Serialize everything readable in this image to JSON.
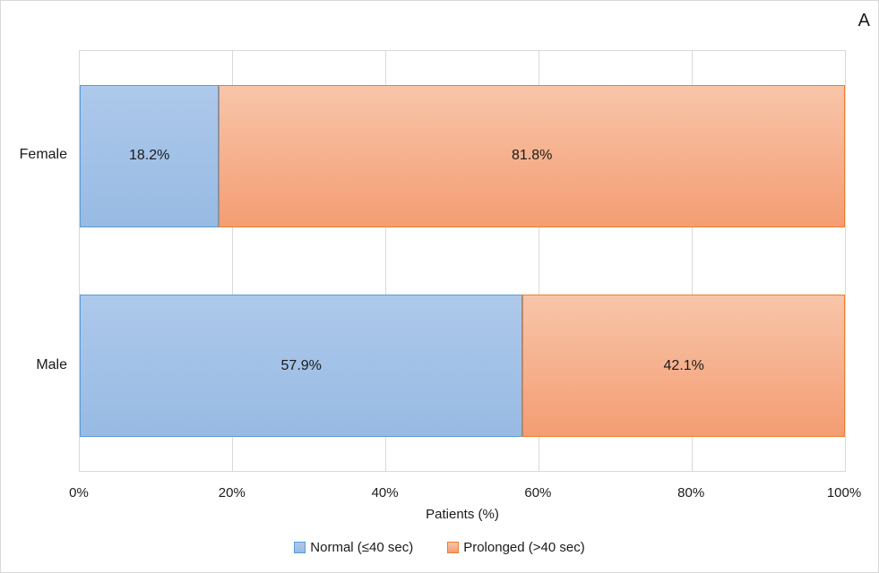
{
  "panel_label": "A",
  "colors": {
    "background": "#FFFFFF",
    "grid_color": "#D9D9D9",
    "plot_border_color": "#D9D9D9",
    "text_color": "#1A1A1A"
  },
  "chart_data": {
    "type": "bar",
    "orientation": "horizontal",
    "stacked": true,
    "categories": [
      "Female",
      "Male"
    ],
    "series": [
      {
        "name": "Normal (≤40 sec)",
        "values": [
          18.2,
          57.9
        ],
        "labels": [
          "18.2%",
          "57.9%"
        ],
        "fill_top": "#ADC9EB",
        "fill_bottom": "#98BAE3",
        "border": "#5B9BD5"
      },
      {
        "name": "Prolonged (>40 sec)",
        "values": [
          81.8,
          42.1
        ],
        "labels": [
          "81.8%",
          "42.1%"
        ],
        "fill_top": "#F8C5A9",
        "fill_bottom": "#F49D73",
        "border": "#ED7D31"
      }
    ],
    "x_ticks": [
      "0%",
      "20%",
      "40%",
      "60%",
      "80%",
      "100%"
    ],
    "xlim": [
      0,
      100
    ],
    "xlabel": "Patients (%)",
    "grid": "vertical",
    "legend_position": "bottom",
    "bar_band_fraction": 0.68
  }
}
